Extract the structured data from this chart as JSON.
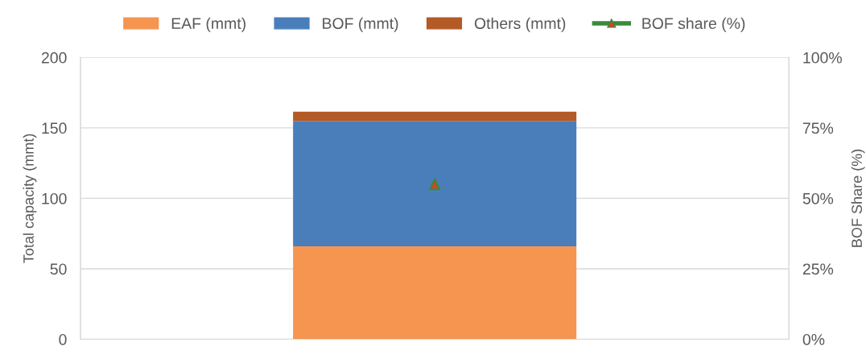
{
  "chart_data": {
    "type": "bar",
    "stacked": true,
    "categories": [
      null
    ],
    "ylabel": "Total capacity (mmt)",
    "y2label": "BOF Share (%)",
    "ylim": [
      0,
      200
    ],
    "yticks": [
      0,
      50,
      100,
      150,
      200
    ],
    "y2lim": [
      0,
      100
    ],
    "y2ticks": [
      {
        "value": 0,
        "label": "0%"
      },
      {
        "value": 25,
        "label": "25%"
      },
      {
        "value": 50,
        "label": "50%"
      },
      {
        "value": 75,
        "label": "75%"
      },
      {
        "value": 100,
        "label": "100%"
      }
    ],
    "grid": "y",
    "legend": "top",
    "series": [
      {
        "name": "EAF (mmt)",
        "color": "#f59550",
        "values": [
          66
        ]
      },
      {
        "name": "BOF (mmt)",
        "color": "#4a7ebb",
        "values": [
          89
        ]
      },
      {
        "name": "Others (mmt)",
        "color": "#b35a27",
        "values": [
          6.5
        ]
      },
      {
        "name": "BOF share (%)",
        "type": "line",
        "axis": "y2",
        "color": "#3a8a3a",
        "colors": [
          "#d9412b"
        ],
        "marker": "triangle",
        "values": [
          55
        ]
      }
    ]
  }
}
